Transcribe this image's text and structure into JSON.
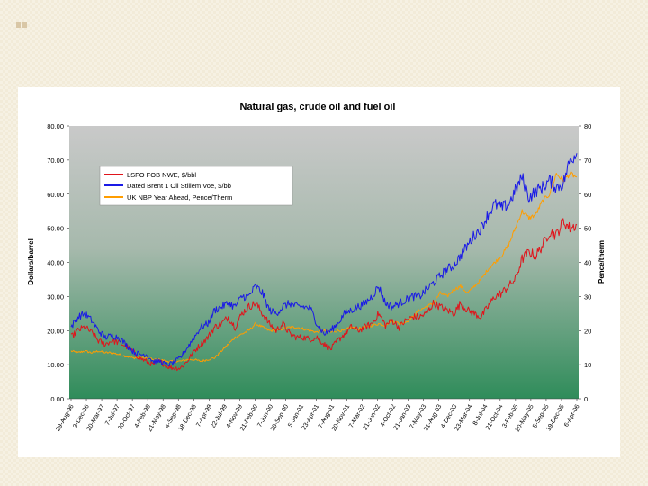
{
  "colors": {
    "lsfo": "#e0141b",
    "brent": "#1a1ae6",
    "nbp": "#ff9d00",
    "plot_top": "#c9c9c9",
    "plot_bottom": "#2f8c5a"
  },
  "chart_data": {
    "type": "line",
    "title": "Natural gas, crude oil and fuel oil",
    "ylabel": "Dollars/barrel",
    "y2label": "Pence/therm",
    "ylim": [
      0,
      80
    ],
    "y2lim": [
      0,
      80
    ],
    "yticks": [
      "0.00",
      "10.00",
      "20.00",
      "30.00",
      "40.00",
      "50.00",
      "60.00",
      "70.00",
      "80.00"
    ],
    "y2ticks": [
      "0",
      "10",
      "20",
      "30",
      "40",
      "50",
      "60",
      "70",
      "80"
    ],
    "xticks": [
      "29-Aug-96",
      "3-Dec-96",
      "20-Mar-97",
      "7-Jul-97",
      "20-Oct-97",
      "4-Feb-98",
      "21-May-98",
      "4-Sep-98",
      "18-Dec-98",
      "7-Apr-99",
      "22-Jul-99",
      "4-Nov-99",
      "21-Feb-00",
      "7-Jun-00",
      "20-Sep-00",
      "5-Jan-01",
      "23-Apr-01",
      "7-Aug-01",
      "20-Nov-01",
      "7-Mar-02",
      "21-Jun-02",
      "4-Oct-02",
      "21-Jan-03",
      "7-May-03",
      "21-Aug-03",
      "4-Dec-03",
      "23-Mar-04",
      "8-Jul-04",
      "21-Oct-04",
      "3-Feb-05",
      "20-May-05",
      "5-Sep-05",
      "19-Dec-05",
      "6-Apr-06"
    ],
    "legend": [
      "LSFO FOB NWE, $/bbl",
      "Dated Brent 1 Oil Stillem Voe, $/bb",
      "UK NBP Year Ahead, Pence/Therm"
    ],
    "series": [
      {
        "name": "LSFO FOB NWE, $/bbl",
        "axis": "left",
        "values": [
          18,
          20,
          21,
          19.5,
          17,
          16,
          17,
          16.5,
          15.5,
          14,
          12,
          11,
          10,
          11,
          9.5,
          9,
          9,
          11,
          14,
          16,
          18,
          21,
          22,
          24,
          21,
          25,
          27,
          28,
          25,
          22,
          20,
          22,
          19,
          18,
          18,
          17.5,
          18,
          16,
          14.5,
          17,
          19,
          21,
          20,
          21,
          22,
          25,
          21.5,
          23,
          21,
          23,
          24,
          24,
          25,
          28,
          27,
          26,
          25,
          28,
          26,
          25,
          24,
          27,
          30,
          31,
          33,
          35,
          41,
          43,
          42,
          45,
          49,
          48,
          52,
          50,
          51
        ]
      },
      {
        "name": "Dated Brent 1 Oil Stillem Voe, $/bb",
        "axis": "left",
        "values": [
          21,
          24,
          25,
          23,
          20,
          18,
          18.5,
          18,
          16,
          14,
          13,
          13,
          11,
          11,
          10,
          10.5,
          12,
          15,
          18,
          21,
          22,
          26,
          27,
          28,
          27,
          30,
          30,
          33,
          31,
          26,
          25,
          27,
          28,
          27,
          27,
          26.5,
          22,
          19,
          20,
          22,
          25,
          26,
          27,
          28,
          30,
          33,
          28,
          27,
          28,
          29,
          30,
          30,
          32,
          34,
          36,
          38,
          39,
          42,
          45,
          48,
          50,
          54,
          57,
          56,
          57,
          61,
          65,
          59,
          61,
          62,
          64,
          62,
          63,
          70,
          72
        ]
      },
      {
        "name": "UK NBP Year Ahead, Pence/Therm",
        "axis": "right",
        "values": [
          14,
          13.5,
          14,
          13.5,
          14,
          13.5,
          13.5,
          13,
          12.5,
          12,
          12,
          12,
          11.5,
          11.5,
          11,
          11,
          11,
          11.5,
          11.5,
          11,
          11.5,
          12,
          14,
          16,
          18,
          19,
          20,
          22,
          21,
          20,
          20,
          20.5,
          21,
          21,
          20.5,
          20,
          19.5,
          20,
          19.5,
          20,
          20,
          21,
          20.5,
          21,
          21.5,
          22,
          21.5,
          23,
          22,
          22.5,
          24,
          26,
          27,
          28,
          31,
          30,
          32,
          33,
          31,
          33,
          35,
          38,
          40,
          42,
          45,
          50,
          55,
          53,
          54,
          58,
          60,
          66,
          64,
          66,
          65
        ]
      }
    ]
  }
}
